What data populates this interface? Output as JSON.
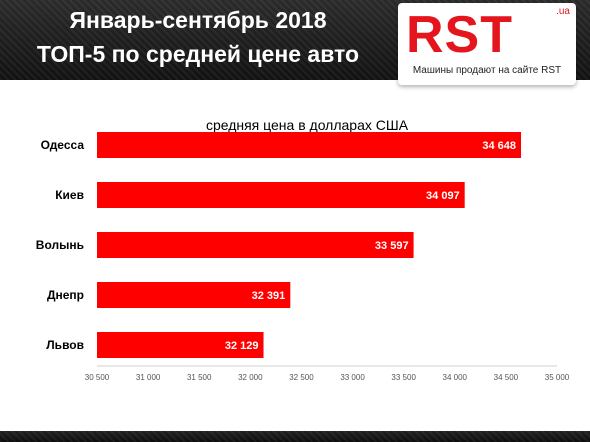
{
  "header": {
    "title_line1": "Январь-сентябрь 2018",
    "title_line2": "ТОП-5 по средней цене авто"
  },
  "logo": {
    "text": "RST",
    "domain": ".ua",
    "tagline": "Машины продают на сайте RST"
  },
  "colors": {
    "bar": "#ff0000",
    "brand": "#e4151c",
    "header_bg": "#1a1a1a"
  },
  "chart_data": {
    "type": "bar",
    "orientation": "horizontal",
    "title": "средняя цена в долларах США",
    "categories": [
      "Одесса",
      "Киев",
      "Волынь",
      "Днепр",
      "Львов"
    ],
    "values": [
      34648,
      34097,
      33597,
      32391,
      32129
    ],
    "value_labels": [
      "34 648",
      "34 097",
      "33 597",
      "32 391",
      "32 129"
    ],
    "xlim": [
      30500,
      35000
    ],
    "xticks": [
      30500,
      31000,
      31500,
      32000,
      32500,
      33000,
      33500,
      34000,
      34500,
      35000
    ],
    "xtick_labels": [
      "30 500",
      "31 000",
      "31 500",
      "32 000",
      "32 500",
      "33 000",
      "33 500",
      "34 000",
      "34 500",
      "35 000"
    ],
    "grid": false,
    "legend": "none"
  }
}
